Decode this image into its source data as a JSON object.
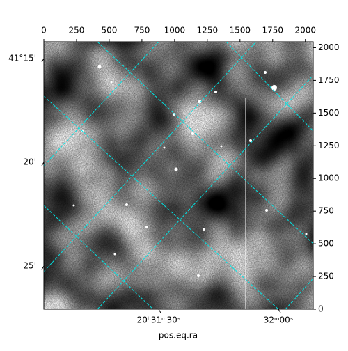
{
  "chart_data": {
    "type": "image",
    "xlabel": "pos.eq.ra",
    "xlim": [
      0,
      2060
    ],
    "xticks": [
      0,
      250,
      500,
      750,
      1000,
      1250,
      1500,
      1750,
      2000
    ],
    "ylim": [
      0,
      2045
    ],
    "yticks": [
      0,
      250,
      500,
      750,
      1000,
      1250,
      1500,
      1750,
      2000
    ],
    "ra_ticks": [
      {
        "value": 878,
        "label": "20ʰ31ᵐ30ˢ"
      },
      {
        "value": 1794,
        "label": "32ᵐ00ˢ"
      }
    ],
    "dec_ticks": [
      {
        "value": 1917,
        "label": "41°15'"
      },
      {
        "value": 1124,
        "label": "20'"
      },
      {
        "value": 330,
        "label": "25'"
      }
    ],
    "grid_color": "#00e5e5"
  }
}
